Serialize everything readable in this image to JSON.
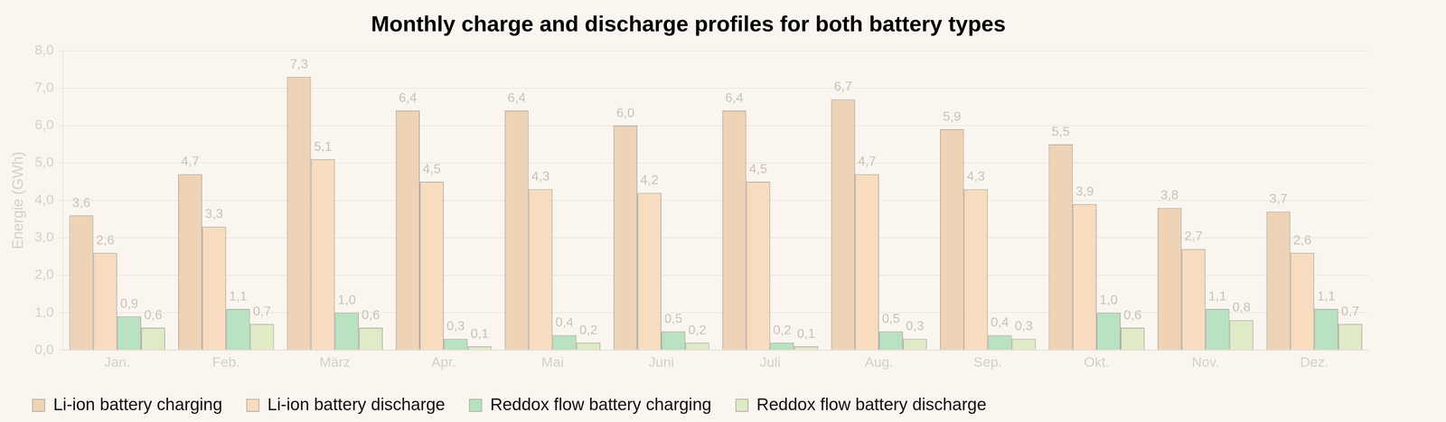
{
  "chart_data": {
    "type": "bar",
    "title": "Monthly charge and discharge profiles for both battery types",
    "y_label": "Energie (GWh)",
    "categories": [
      "Jan.",
      "Feb.",
      "März",
      "Apr.",
      "Mai",
      "Juni",
      "Juli",
      "Aug.",
      "Sep.",
      "Okt.",
      "Nov.",
      "Dez."
    ],
    "series": [
      {
        "name": "Li-ion battery charging",
        "color": "#efd3b6",
        "values": [
          3.6,
          4.7,
          7.3,
          6.4,
          6.4,
          6.0,
          6.4,
          6.7,
          5.9,
          5.5,
          3.8,
          3.7
        ],
        "value_labels": [
          "3,6",
          "4,7",
          "7,3",
          "6,4",
          "6,4",
          "6,0",
          "6,4",
          "6,7",
          "5,9",
          "5,5",
          "3,8",
          "3,7"
        ]
      },
      {
        "name": "Li-ion battery discharge",
        "color": "#f7dcbf",
        "values": [
          2.6,
          3.3,
          5.1,
          4.5,
          4.3,
          4.2,
          4.5,
          4.7,
          4.3,
          3.9,
          2.7,
          2.6
        ],
        "value_labels": [
          "2,6",
          "3,3",
          "5,1",
          "4,5",
          "4,3",
          "4,2",
          "4,5",
          "4,7",
          "4,3",
          "3,9",
          "2,7",
          "2,6"
        ]
      },
      {
        "name": "Reddox flow battery charging",
        "color": "#b8e2c2",
        "values": [
          0.9,
          1.1,
          1.0,
          0.3,
          0.4,
          0.5,
          0.2,
          0.5,
          0.4,
          1.0,
          1.1,
          1.1
        ],
        "value_labels": [
          "0,9",
          "1,1",
          "1,0",
          "0,3",
          "0,4",
          "0,5",
          "0,2",
          "0,5",
          "0,4",
          "1,0",
          "1,1",
          "1,1"
        ]
      },
      {
        "name": "Reddox flow battery discharge",
        "color": "#dfeac6",
        "values": [
          0.6,
          0.7,
          0.6,
          0.1,
          0.2,
          0.2,
          0.1,
          0.3,
          0.3,
          0.6,
          0.8,
          0.7
        ],
        "value_labels": [
          "0,6",
          "0,7",
          "0,6",
          "0,1",
          "0,2",
          "0,2",
          "0,1",
          "0,3",
          "0,3",
          "0,6",
          "0,8",
          "0,7"
        ]
      }
    ],
    "ylim": [
      0,
      8
    ],
    "yticks": [
      {
        "value": 0,
        "label": "0,0"
      },
      {
        "value": 1,
        "label": "1,0"
      },
      {
        "value": 2,
        "label": "2,0"
      },
      {
        "value": 3,
        "label": "3,0"
      },
      {
        "value": 4,
        "label": "4,0"
      },
      {
        "value": 5,
        "label": "5,0"
      },
      {
        "value": 6,
        "label": "6,0"
      },
      {
        "value": 7,
        "label": "7,0"
      },
      {
        "value": 8,
        "label": "8,0"
      }
    ],
    "grid": true,
    "legend": "bottom",
    "data_labels": true
  }
}
